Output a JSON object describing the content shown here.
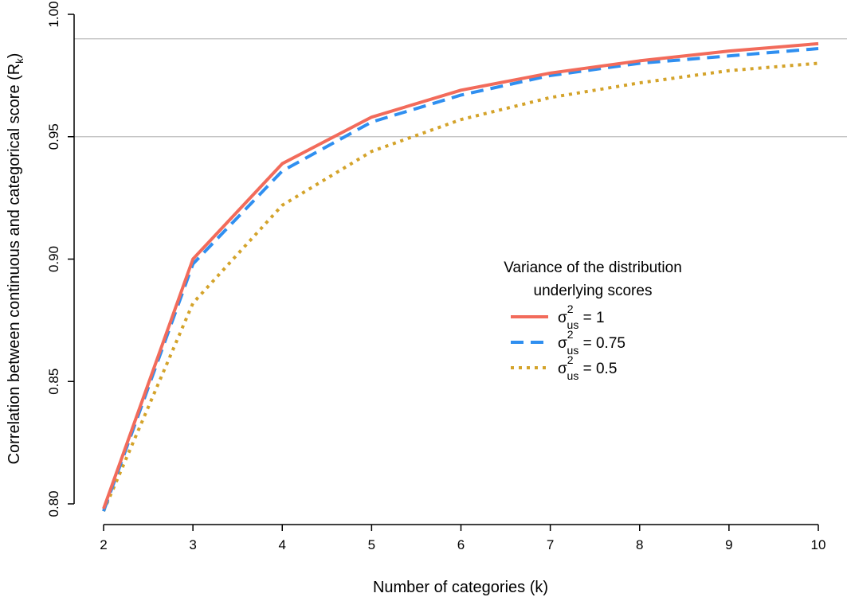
{
  "chart_data": {
    "type": "line",
    "xlabel": "Number of categories (k)",
    "ylabel": "Correlation between continuous and categorical score (R",
    "ylabel_sub": "k",
    "ylabel_close": ")",
    "xlim": [
      2,
      10
    ],
    "ylim": [
      0.8,
      1.0
    ],
    "x_ticks": [
      2,
      3,
      4,
      5,
      6,
      7,
      8,
      9,
      10
    ],
    "y_ticks": [
      "0.80",
      "0.85",
      "0.90",
      "0.95",
      "1.00"
    ],
    "reference_lines": [
      0.95,
      0.99
    ],
    "legend": {
      "title_line1": "Variance of the distribution",
      "title_line2": "underlying scores",
      "placement": "center-right"
    },
    "x": [
      2,
      3,
      4,
      5,
      6,
      7,
      8,
      9,
      10
    ],
    "series": [
      {
        "name": "σ",
        "sup": "2",
        "sub": "us",
        "suffix": " = 1",
        "color": "#f26b5b",
        "dash": "solid",
        "values": [
          0.798,
          0.9,
          0.939,
          0.958,
          0.969,
          0.976,
          0.981,
          0.985,
          0.988
        ]
      },
      {
        "name": "σ",
        "sup": "2",
        "sub": "us",
        "suffix": " = 0.75",
        "color": "#2f8ff0",
        "dash": "dashed",
        "values": [
          0.797,
          0.898,
          0.936,
          0.956,
          0.967,
          0.975,
          0.98,
          0.983,
          0.986
        ]
      },
      {
        "name": "σ",
        "sup": "2",
        "sub": "us",
        "suffix": " = 0.5",
        "color": "#d4a32a",
        "dash": "dotted",
        "values": [
          0.797,
          0.882,
          0.922,
          0.944,
          0.957,
          0.966,
          0.972,
          0.977,
          0.98
        ]
      }
    ]
  }
}
